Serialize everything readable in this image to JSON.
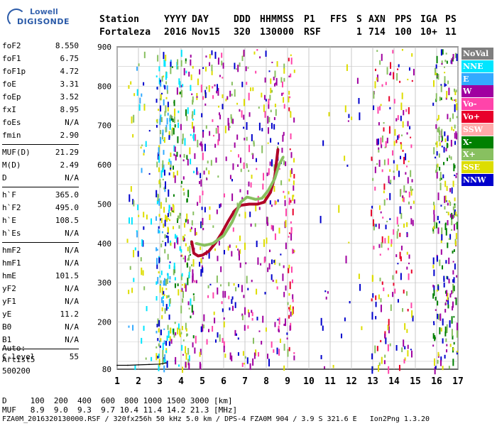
{
  "logo": {
    "line1": "Lowell",
    "line2": "DIGISONDE"
  },
  "header": {
    "labels": {
      "station": "Station",
      "yyyy": "YYYY",
      "day": "DAY",
      "ddd": "DDD",
      "hhmmss": "HHMMSS",
      "p1": "P1",
      "ffs": "FFS",
      "s": "S",
      "axn": "AXN",
      "pps": "PPS",
      "iga": "IGA",
      "ps": "PS"
    },
    "values": {
      "station": "Fortaleza",
      "yyyy": "2016",
      "day": "Nov15",
      "ddd": "320",
      "hhmmss": "130000",
      "p1": "RSF",
      "ffs": "",
      "s": "1",
      "axn": "714",
      "pps": "100",
      "iga": "10+",
      "ps": "11"
    }
  },
  "params": [
    {
      "group": [
        {
          "k": "foF2",
          "v": "8.550"
        },
        {
          "k": "foF1",
          "v": "6.75"
        },
        {
          "k": "foF1p",
          "v": "4.72"
        },
        {
          "k": "foE",
          "v": "3.31"
        },
        {
          "k": "foEp",
          "v": "3.52"
        },
        {
          "k": "fxI",
          "v": "8.95"
        },
        {
          "k": "foEs",
          "v": "N/A"
        },
        {
          "k": "fmin",
          "v": "2.90"
        }
      ]
    },
    {
      "group": [
        {
          "k": "MUF(D)",
          "v": "21.29"
        },
        {
          "k": "M(D)",
          "v": "2.49"
        },
        {
          "k": "D",
          "v": "N/A"
        }
      ]
    },
    {
      "group": [
        {
          "k": "h`F",
          "v": "365.0"
        },
        {
          "k": "h`F2",
          "v": "495.0"
        },
        {
          "k": "h`E",
          "v": "108.5"
        },
        {
          "k": "h`Es",
          "v": "N/A"
        }
      ]
    },
    {
      "group": [
        {
          "k": "hmF2",
          "v": "N/A"
        },
        {
          "k": "hmF1",
          "v": "N/A"
        },
        {
          "k": "hmE",
          "v": "101.5"
        },
        {
          "k": "yF2",
          "v": "N/A"
        },
        {
          "k": "yF1",
          "v": "N/A"
        },
        {
          "k": "yE",
          "v": "11.2"
        },
        {
          "k": "B0",
          "v": "N/A"
        },
        {
          "k": "B1",
          "v": "N/A"
        }
      ]
    },
    {
      "group": [
        {
          "k": "C-level",
          "v": "55"
        }
      ]
    }
  ],
  "autoscale": {
    "line1": "Auto:",
    "line2": "Artist5",
    "line3": "500200"
  },
  "legend": [
    {
      "label": "NoVal",
      "color": "#7f7f7f"
    },
    {
      "label": "NNE",
      "color": "#00e5ff"
    },
    {
      "label": "E",
      "color": "#33aaff"
    },
    {
      "label": "W",
      "color": "#a000a0"
    },
    {
      "label": "Vo-",
      "color": "#ff44aa"
    },
    {
      "label": "Vo+",
      "color": "#e8002a"
    },
    {
      "label": "SSW",
      "color": "#ffaaaa"
    },
    {
      "label": "X-",
      "color": "#008000"
    },
    {
      "label": "X+",
      "color": "#88c060"
    },
    {
      "label": "SSE",
      "color": "#dddd00"
    },
    {
      "label": "NNW",
      "color": "#0000cc"
    }
  ],
  "footer": {
    "d_row": "D     100  200  400  600  800 1000 1500 3000 [km]",
    "muf_row": "MUF   8.9  9.0  9.3  9.7 10.4 11.4 14.2 21.3 [MHz]",
    "info": "FZA0M_2016320130000.RSF / 320fx256h 50 kHz 5.0 km / DPS-4 FZA0M 904 / 3.9 S 321.6 E   Ion2Png 1.3.20"
  },
  "chart_data": {
    "type": "scatter",
    "x_ticks": [
      "1",
      "2",
      "3",
      "4",
      "5",
      "6",
      "7",
      "8",
      "9",
      "10",
      "11",
      "12",
      "13",
      "14",
      "15",
      "16",
      "17"
    ],
    "y_ticks": [
      "80",
      "200",
      "300",
      "400",
      "500",
      "600",
      "700",
      "800",
      "900"
    ],
    "xlim": [
      1,
      17
    ],
    "ylim": [
      80,
      900
    ],
    "series": [
      {
        "name": "Vo+",
        "color": "#b00028",
        "points": [
          [
            4.5,
            405
          ],
          [
            4.6,
            375
          ],
          [
            4.8,
            368
          ],
          [
            5.0,
            370
          ],
          [
            5.3,
            380
          ],
          [
            5.6,
            400
          ],
          [
            5.9,
            425
          ],
          [
            6.2,
            455
          ],
          [
            6.5,
            482
          ],
          [
            6.8,
            497
          ],
          [
            7.2,
            500
          ],
          [
            7.6,
            500
          ],
          [
            7.9,
            505
          ],
          [
            8.2,
            530
          ],
          [
            8.4,
            570
          ],
          [
            8.55,
            640
          ]
        ]
      },
      {
        "name": "X+",
        "color": "#88c060",
        "points": [
          [
            4.7,
            400
          ],
          [
            5.1,
            395
          ],
          [
            5.5,
            400
          ],
          [
            6.0,
            420
          ],
          [
            6.4,
            455
          ],
          [
            6.8,
            505
          ],
          [
            7.1,
            518
          ],
          [
            7.5,
            512
          ],
          [
            7.8,
            515
          ],
          [
            8.1,
            535
          ],
          [
            8.4,
            565
          ],
          [
            8.6,
            600
          ],
          [
            8.8,
            620
          ]
        ]
      },
      {
        "name": "E",
        "color": "#000000",
        "points": [
          [
            1.0,
            90
          ],
          [
            1.5,
            90
          ],
          [
            2.0,
            91
          ],
          [
            2.5,
            92
          ],
          [
            3.0,
            93
          ],
          [
            3.3,
            96
          ]
        ]
      }
    ]
  }
}
